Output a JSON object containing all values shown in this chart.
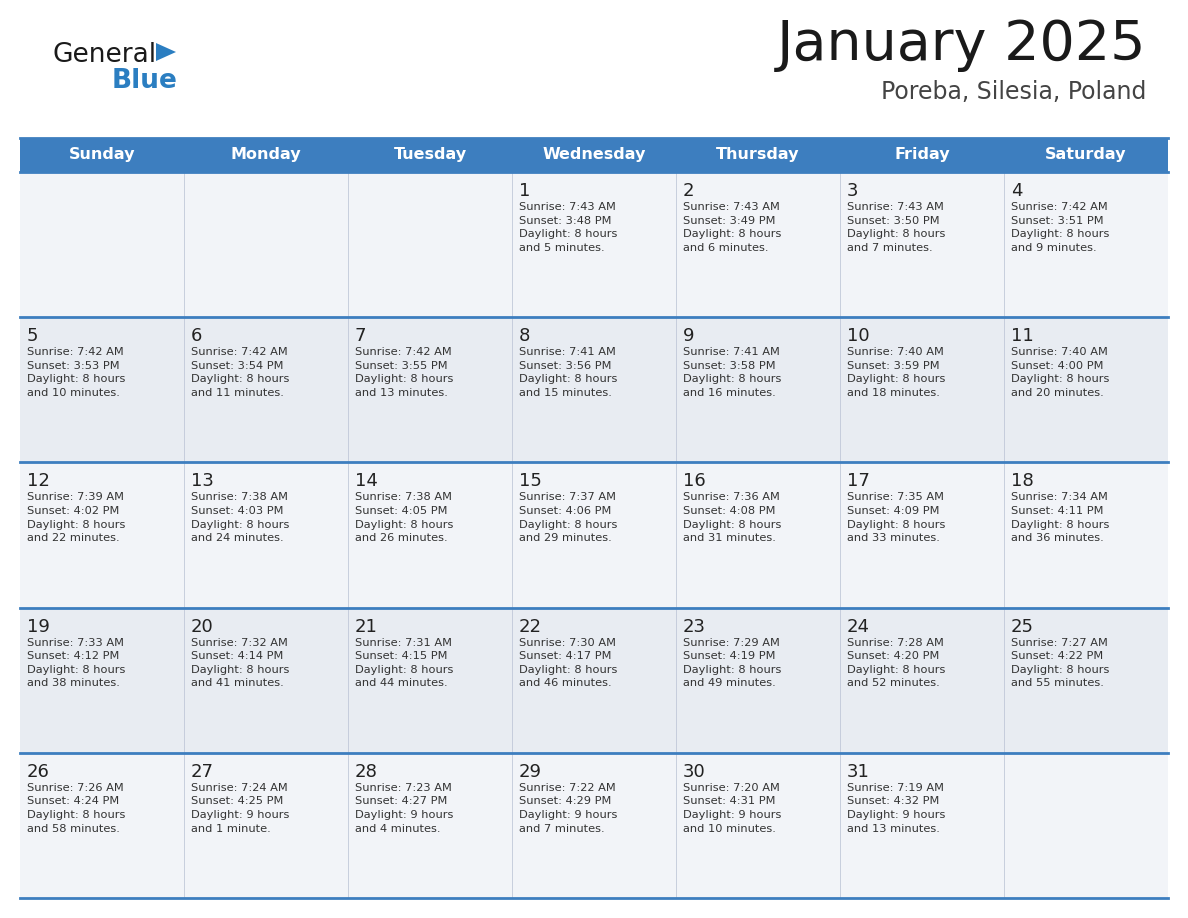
{
  "title": "January 2025",
  "subtitle": "Poreba, Silesia, Poland",
  "days_of_week": [
    "Sunday",
    "Monday",
    "Tuesday",
    "Wednesday",
    "Thursday",
    "Friday",
    "Saturday"
  ],
  "header_bg": "#3d7ebf",
  "header_text": "#ffffff",
  "row_bg_odd": "#f2f4f8",
  "row_bg_even": "#e8ecf2",
  "cell_border_color": "#3d7ebf",
  "cell_inner_border": "#c0c8d8",
  "day_num_color": "#222222",
  "info_text_color": "#333333",
  "title_color": "#1a1a1a",
  "subtitle_color": "#444444",
  "logo_color_general": "#1a1a1a",
  "logo_color_blue": "#2b7ec1",
  "logo_triangle_color": "#2b7ec1",
  "calendar": [
    [
      {
        "day": null,
        "info": null
      },
      {
        "day": null,
        "info": null
      },
      {
        "day": null,
        "info": null
      },
      {
        "day": 1,
        "info": "Sunrise: 7:43 AM\nSunset: 3:48 PM\nDaylight: 8 hours\nand 5 minutes."
      },
      {
        "day": 2,
        "info": "Sunrise: 7:43 AM\nSunset: 3:49 PM\nDaylight: 8 hours\nand 6 minutes."
      },
      {
        "day": 3,
        "info": "Sunrise: 7:43 AM\nSunset: 3:50 PM\nDaylight: 8 hours\nand 7 minutes."
      },
      {
        "day": 4,
        "info": "Sunrise: 7:42 AM\nSunset: 3:51 PM\nDaylight: 8 hours\nand 9 minutes."
      }
    ],
    [
      {
        "day": 5,
        "info": "Sunrise: 7:42 AM\nSunset: 3:53 PM\nDaylight: 8 hours\nand 10 minutes."
      },
      {
        "day": 6,
        "info": "Sunrise: 7:42 AM\nSunset: 3:54 PM\nDaylight: 8 hours\nand 11 minutes."
      },
      {
        "day": 7,
        "info": "Sunrise: 7:42 AM\nSunset: 3:55 PM\nDaylight: 8 hours\nand 13 minutes."
      },
      {
        "day": 8,
        "info": "Sunrise: 7:41 AM\nSunset: 3:56 PM\nDaylight: 8 hours\nand 15 minutes."
      },
      {
        "day": 9,
        "info": "Sunrise: 7:41 AM\nSunset: 3:58 PM\nDaylight: 8 hours\nand 16 minutes."
      },
      {
        "day": 10,
        "info": "Sunrise: 7:40 AM\nSunset: 3:59 PM\nDaylight: 8 hours\nand 18 minutes."
      },
      {
        "day": 11,
        "info": "Sunrise: 7:40 AM\nSunset: 4:00 PM\nDaylight: 8 hours\nand 20 minutes."
      }
    ],
    [
      {
        "day": 12,
        "info": "Sunrise: 7:39 AM\nSunset: 4:02 PM\nDaylight: 8 hours\nand 22 minutes."
      },
      {
        "day": 13,
        "info": "Sunrise: 7:38 AM\nSunset: 4:03 PM\nDaylight: 8 hours\nand 24 minutes."
      },
      {
        "day": 14,
        "info": "Sunrise: 7:38 AM\nSunset: 4:05 PM\nDaylight: 8 hours\nand 26 minutes."
      },
      {
        "day": 15,
        "info": "Sunrise: 7:37 AM\nSunset: 4:06 PM\nDaylight: 8 hours\nand 29 minutes."
      },
      {
        "day": 16,
        "info": "Sunrise: 7:36 AM\nSunset: 4:08 PM\nDaylight: 8 hours\nand 31 minutes."
      },
      {
        "day": 17,
        "info": "Sunrise: 7:35 AM\nSunset: 4:09 PM\nDaylight: 8 hours\nand 33 minutes."
      },
      {
        "day": 18,
        "info": "Sunrise: 7:34 AM\nSunset: 4:11 PM\nDaylight: 8 hours\nand 36 minutes."
      }
    ],
    [
      {
        "day": 19,
        "info": "Sunrise: 7:33 AM\nSunset: 4:12 PM\nDaylight: 8 hours\nand 38 minutes."
      },
      {
        "day": 20,
        "info": "Sunrise: 7:32 AM\nSunset: 4:14 PM\nDaylight: 8 hours\nand 41 minutes."
      },
      {
        "day": 21,
        "info": "Sunrise: 7:31 AM\nSunset: 4:15 PM\nDaylight: 8 hours\nand 44 minutes."
      },
      {
        "day": 22,
        "info": "Sunrise: 7:30 AM\nSunset: 4:17 PM\nDaylight: 8 hours\nand 46 minutes."
      },
      {
        "day": 23,
        "info": "Sunrise: 7:29 AM\nSunset: 4:19 PM\nDaylight: 8 hours\nand 49 minutes."
      },
      {
        "day": 24,
        "info": "Sunrise: 7:28 AM\nSunset: 4:20 PM\nDaylight: 8 hours\nand 52 minutes."
      },
      {
        "day": 25,
        "info": "Sunrise: 7:27 AM\nSunset: 4:22 PM\nDaylight: 8 hours\nand 55 minutes."
      }
    ],
    [
      {
        "day": 26,
        "info": "Sunrise: 7:26 AM\nSunset: 4:24 PM\nDaylight: 8 hours\nand 58 minutes."
      },
      {
        "day": 27,
        "info": "Sunrise: 7:24 AM\nSunset: 4:25 PM\nDaylight: 9 hours\nand 1 minute."
      },
      {
        "day": 28,
        "info": "Sunrise: 7:23 AM\nSunset: 4:27 PM\nDaylight: 9 hours\nand 4 minutes."
      },
      {
        "day": 29,
        "info": "Sunrise: 7:22 AM\nSunset: 4:29 PM\nDaylight: 9 hours\nand 7 minutes."
      },
      {
        "day": 30,
        "info": "Sunrise: 7:20 AM\nSunset: 4:31 PM\nDaylight: 9 hours\nand 10 minutes."
      },
      {
        "day": 31,
        "info": "Sunrise: 7:19 AM\nSunset: 4:32 PM\nDaylight: 9 hours\nand 13 minutes."
      },
      {
        "day": null,
        "info": null
      }
    ]
  ]
}
